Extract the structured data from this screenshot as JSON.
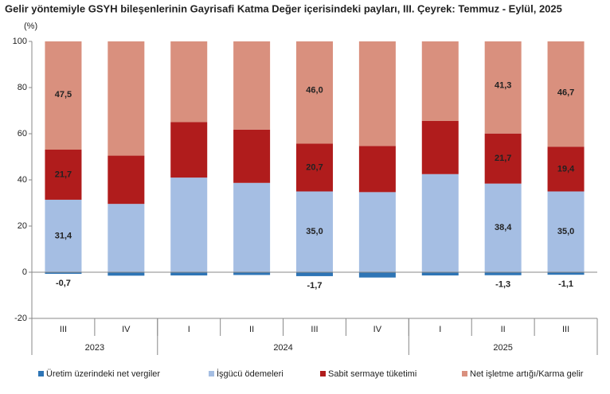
{
  "chart_data": {
    "type": "stacked_bar",
    "title": "Gelir yöntemiyle GSYH bileşenlerinin Gayrisafi Katma Değer içerisindeki payları, III. Çeyrek: Temmuz - Eylül, 2025",
    "y_label": "(%)",
    "categories": [
      "III",
      "IV",
      "I",
      "II",
      "III",
      "IV",
      "I",
      "II",
      "III"
    ],
    "groups": [
      {
        "name": "2023",
        "size": 2
      },
      {
        "name": "2024",
        "size": 4
      },
      {
        "name": "2025",
        "size": 3
      }
    ],
    "series": [
      {
        "name": "Üretim üzerindeki net vergiler",
        "color": "#2e75b6",
        "values": [
          -0.7,
          -1.5,
          -1.4,
          -1.2,
          -1.7,
          -2.3,
          -1.4,
          -1.3,
          -1.1
        ],
        "value_labels": [
          "-0,7",
          null,
          null,
          null,
          "-1,7",
          null,
          null,
          "-1,3",
          "-1,1"
        ]
      },
      {
        "name": "İşgücü ödemeleri",
        "color": "#a5bee3",
        "values": [
          31.4,
          29.6,
          41.0,
          38.7,
          35.0,
          34.7,
          42.5,
          38.4,
          35.0
        ],
        "value_labels": [
          "31,4",
          null,
          null,
          null,
          "35,0",
          null,
          null,
          "38,4",
          "35,0"
        ]
      },
      {
        "name": "Sabit sermaye tüketimi",
        "color": "#b01c1c",
        "values": [
          21.7,
          20.9,
          24.0,
          23.1,
          20.7,
          20.0,
          23.1,
          21.7,
          19.4
        ],
        "value_labels": [
          "21,7",
          null,
          null,
          null,
          "20,7",
          null,
          null,
          "21,7",
          "19,4"
        ]
      },
      {
        "name": "Net işletme artığı/Karma gelir",
        "color": "#d9907e",
        "values": [
          47.5,
          51.0,
          36.4,
          39.4,
          46.0,
          47.6,
          35.8,
          41.3,
          46.7
        ],
        "value_labels": [
          "47,5",
          null,
          null,
          null,
          "46,0",
          null,
          null,
          "41,3",
          "46,7"
        ]
      }
    ],
    "ylim": [
      -20,
      100
    ],
    "yticks": [
      -20,
      0,
      20,
      40,
      60,
      80,
      100
    ]
  }
}
